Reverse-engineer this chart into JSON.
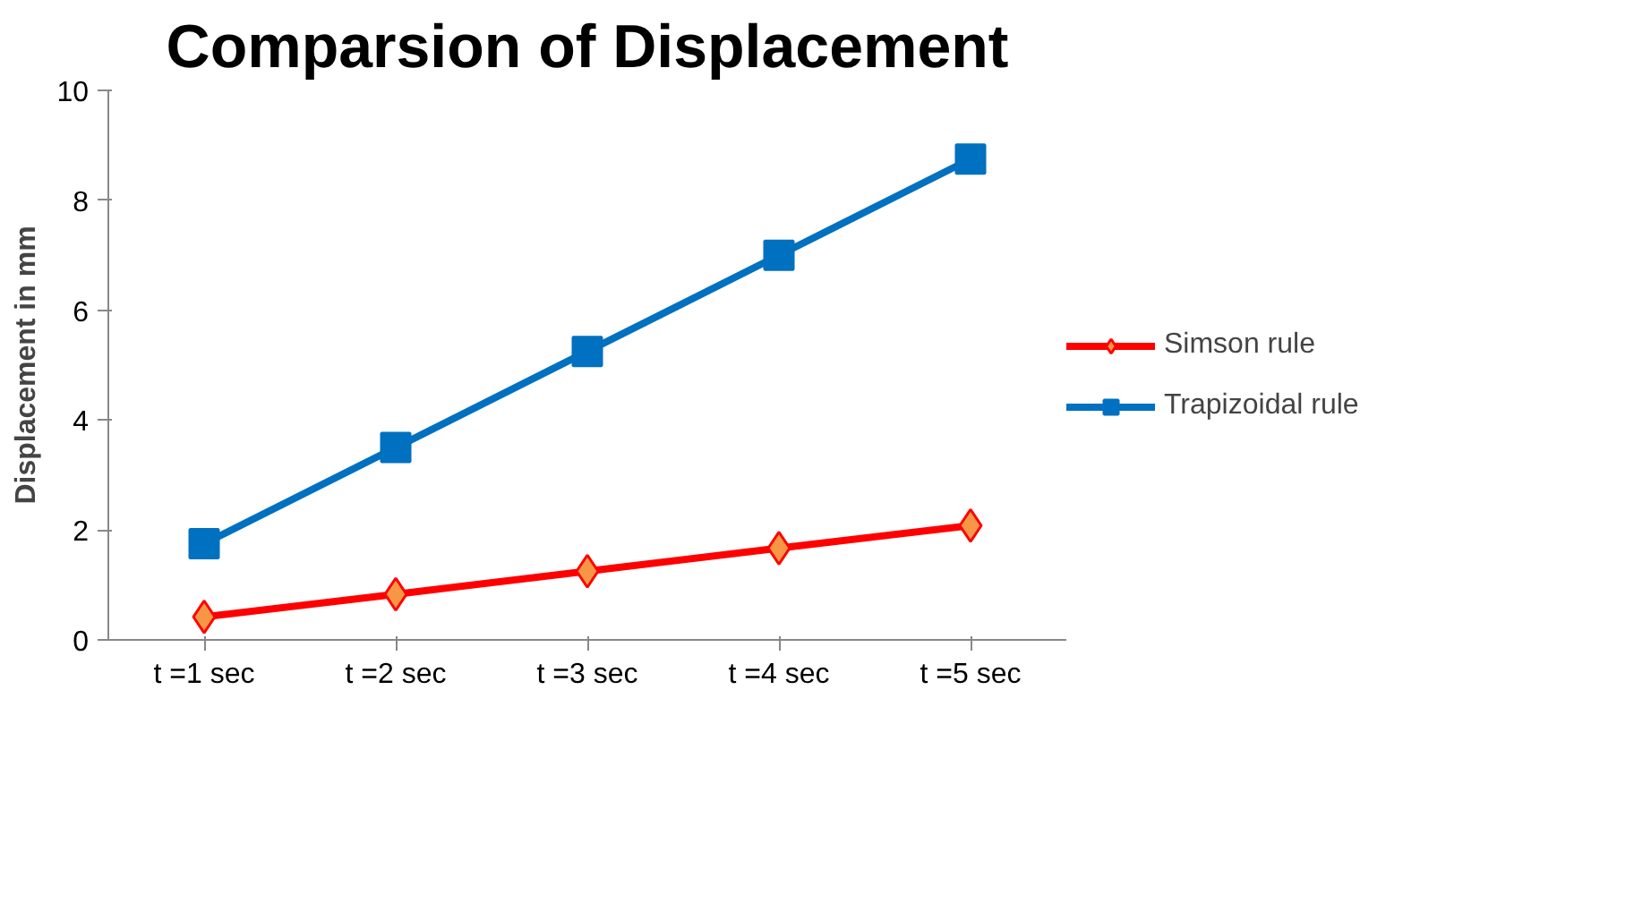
{
  "chart_data": {
    "type": "line",
    "title": "Comparsion of Displacement",
    "ylabel": "Displacement in mm",
    "categories": [
      "t =1 sec",
      "t =2 sec",
      "t =3 sec",
      "t =4 sec",
      "t =5 sec"
    ],
    "series": [
      {
        "name": "Simson rule",
        "color": "#ff0000",
        "colors": [
          "#f79646",
          "#f79646",
          "#f79646",
          "#f79646",
          "#f79646"
        ],
        "marker": "diamond",
        "values": [
          0.42,
          0.83,
          1.25,
          1.67,
          2.08
        ]
      },
      {
        "name": "Trapizoidal rule",
        "color": "#0070c0",
        "marker": "square",
        "values": [
          1.75,
          3.5,
          5.25,
          7.0,
          8.75
        ]
      }
    ],
    "ylim": [
      0,
      10
    ],
    "yticks": [
      0,
      2,
      4,
      6,
      8,
      10
    ],
    "grid": false,
    "legend": "right",
    "line_style": "solid"
  }
}
